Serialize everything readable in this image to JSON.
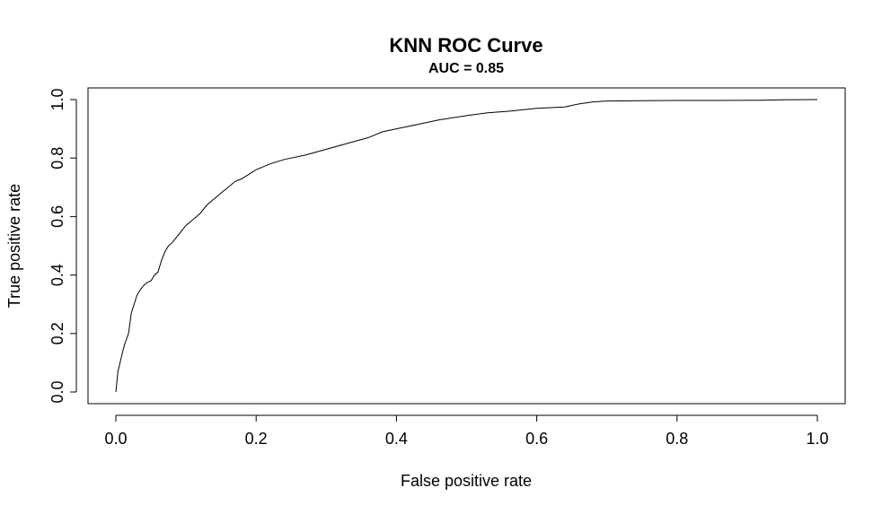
{
  "chart_data": {
    "type": "line",
    "title": "KNN ROC Curve",
    "subtitle": "AUC = 0.85",
    "xlabel": "False positive rate",
    "ylabel": "True positive rate",
    "xlim": [
      0,
      1
    ],
    "ylim": [
      0,
      1
    ],
    "x_ticks": [
      "0.0",
      "0.2",
      "0.4",
      "0.6",
      "0.8",
      "1.0"
    ],
    "y_ticks": [
      "0.0",
      "0.2",
      "0.4",
      "0.6",
      "0.8",
      "1.0"
    ],
    "grid": false,
    "legend": "none",
    "line_color": "#000000",
    "series": [
      {
        "x": [
          0.0,
          0.003,
          0.008,
          0.012,
          0.018,
          0.022,
          0.026,
          0.03,
          0.035,
          0.04,
          0.045,
          0.05,
          0.055,
          0.06,
          0.065,
          0.07,
          0.075,
          0.08,
          0.09,
          0.1,
          0.11,
          0.12,
          0.13,
          0.14,
          0.15,
          0.16,
          0.17,
          0.18,
          0.2,
          0.22,
          0.24,
          0.27,
          0.3,
          0.33,
          0.36,
          0.38,
          0.4,
          0.43,
          0.46,
          0.5,
          0.53,
          0.56,
          0.6,
          0.64,
          0.66,
          0.68,
          0.7,
          0.75,
          0.8,
          0.85,
          0.92,
          0.95,
          1.0
        ],
        "y": [
          0.0,
          0.07,
          0.12,
          0.16,
          0.2,
          0.27,
          0.3,
          0.33,
          0.35,
          0.365,
          0.375,
          0.38,
          0.4,
          0.41,
          0.45,
          0.48,
          0.5,
          0.51,
          0.54,
          0.57,
          0.59,
          0.61,
          0.64,
          0.66,
          0.68,
          0.7,
          0.72,
          0.73,
          0.76,
          0.78,
          0.795,
          0.81,
          0.83,
          0.85,
          0.87,
          0.89,
          0.9,
          0.915,
          0.93,
          0.945,
          0.955,
          0.96,
          0.97,
          0.975,
          0.985,
          0.992,
          0.995,
          0.996,
          0.997,
          0.997,
          0.998,
          0.999,
          1.0
        ]
      }
    ]
  }
}
